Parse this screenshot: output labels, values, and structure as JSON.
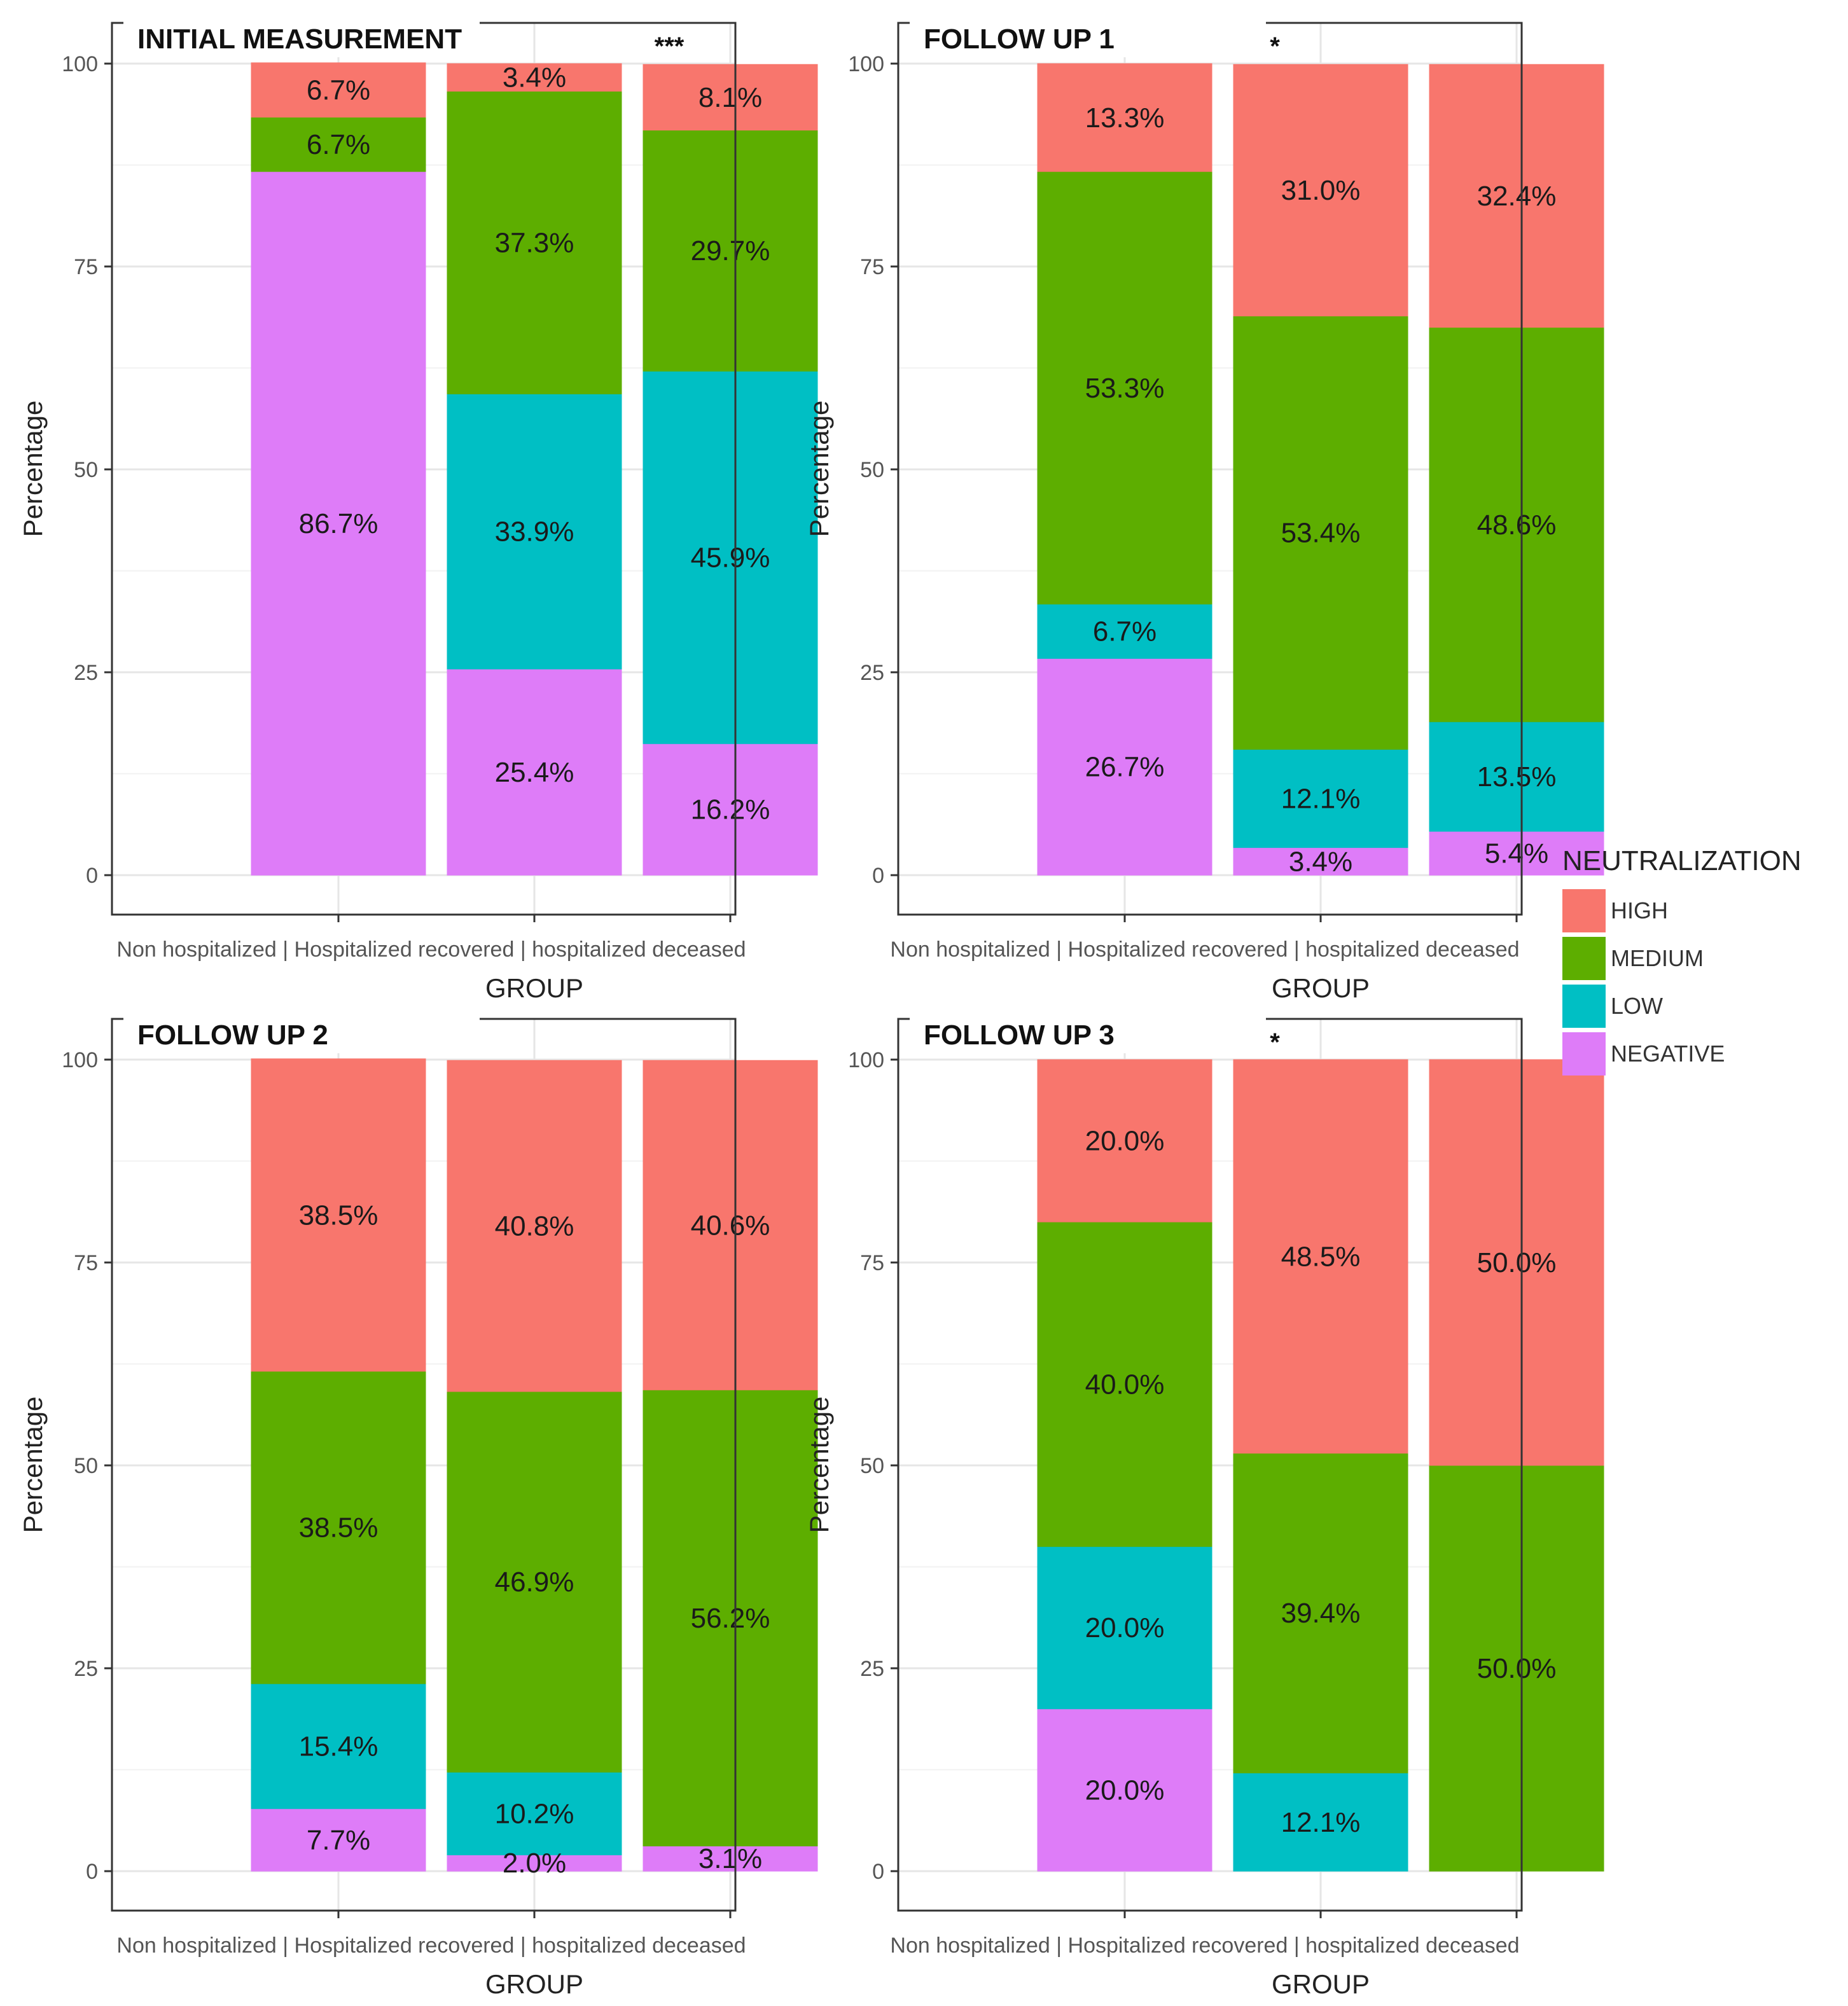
{
  "chart_data": {
    "type": "bar",
    "stacked": true,
    "colors": {
      "HIGH": "#F8766D",
      "MEDIUM": "#5DAE00",
      "LOW": "#00BFC4",
      "NEGATIVE": "#DE7CF8"
    },
    "legend": {
      "title": "NEUTRALIZATION",
      "entries": [
        "HIGH",
        "MEDIUM",
        "LOW",
        "NEGATIVE"
      ],
      "position": "right"
    },
    "panels": [
      {
        "title": "INITIAL MEASUREMENT",
        "significance": "***",
        "xlabel": "GROUP",
        "ylabel": "Percentage",
        "ylim": [
          0,
          100
        ],
        "yticks": [
          "0",
          "25",
          "50",
          "75",
          "100"
        ],
        "categories": [
          "Non hospitalized",
          "Hospitalized recovered",
          "hospitalized deceased"
        ],
        "category_separator": " | ",
        "series": [
          {
            "name": "NEGATIVE",
            "values": [
              86.7,
              25.4,
              16.2
            ],
            "labels": [
              "86.7%",
              "25.4%",
              "16.2%"
            ]
          },
          {
            "name": "LOW",
            "values": [
              0,
              33.9,
              45.9
            ],
            "labels": [
              "",
              "33.9%",
              "45.9%"
            ]
          },
          {
            "name": "MEDIUM",
            "values": [
              6.7,
              37.3,
              29.7
            ],
            "labels": [
              "6.7%",
              "37.3%",
              "29.7%"
            ]
          },
          {
            "name": "HIGH",
            "values": [
              6.7,
              3.4,
              8.1
            ],
            "labels": [
              "6.7%",
              "3.4%",
              "8.1%"
            ]
          }
        ]
      },
      {
        "title": "FOLLOW UP 1",
        "significance": "*",
        "xlabel": "GROUP",
        "ylabel": "Percentage",
        "ylim": [
          0,
          100
        ],
        "yticks": [
          "0",
          "25",
          "50",
          "75",
          "100"
        ],
        "categories": [
          "Non hospitalized",
          "Hospitalized recovered",
          "hospitalized deceased"
        ],
        "category_separator": " | ",
        "series": [
          {
            "name": "NEGATIVE",
            "values": [
              26.7,
              3.4,
              5.4
            ],
            "labels": [
              "26.7%",
              "3.4%",
              "5.4%"
            ]
          },
          {
            "name": "LOW",
            "values": [
              6.7,
              12.1,
              13.5
            ],
            "labels": [
              "6.7%",
              "12.1%",
              "13.5%"
            ]
          },
          {
            "name": "MEDIUM",
            "values": [
              53.3,
              53.4,
              48.6
            ],
            "labels": [
              "53.3%",
              "53.4%",
              "48.6%"
            ]
          },
          {
            "name": "HIGH",
            "values": [
              13.3,
              31.0,
              32.4
            ],
            "labels": [
              "13.3%",
              "31.0%",
              "32.4%"
            ]
          }
        ]
      },
      {
        "title": "FOLLOW UP 2",
        "significance": "",
        "xlabel": "GROUP",
        "ylabel": "Percentage",
        "ylim": [
          0,
          100
        ],
        "yticks": [
          "0",
          "25",
          "50",
          "75",
          "100"
        ],
        "categories": [
          "Non hospitalized",
          "Hospitalized recovered",
          "hospitalized deceased"
        ],
        "category_separator": " | ",
        "series": [
          {
            "name": "NEGATIVE",
            "values": [
              7.7,
              2.0,
              3.1
            ],
            "labels": [
              "7.7%",
              "2.0%",
              "3.1%"
            ]
          },
          {
            "name": "LOW",
            "values": [
              15.4,
              10.2,
              0
            ],
            "labels": [
              "15.4%",
              "10.2%",
              ""
            ]
          },
          {
            "name": "MEDIUM",
            "values": [
              38.5,
              46.9,
              56.2
            ],
            "labels": [
              "38.5%",
              "46.9%",
              "56.2%"
            ]
          },
          {
            "name": "HIGH",
            "values": [
              38.5,
              40.8,
              40.6
            ],
            "labels": [
              "38.5%",
              "40.8%",
              "40.6%"
            ]
          }
        ]
      },
      {
        "title": "FOLLOW UP 3",
        "significance": "*",
        "xlabel": "GROUP",
        "ylabel": "Percentage",
        "ylim": [
          0,
          100
        ],
        "yticks": [
          "0",
          "25",
          "50",
          "75",
          "100"
        ],
        "categories": [
          "Non hospitalized",
          "Hospitalized recovered",
          "hospitalized deceased"
        ],
        "category_separator": " | ",
        "series": [
          {
            "name": "NEGATIVE",
            "values": [
              20.0,
              0,
              0
            ],
            "labels": [
              "20.0%",
              "",
              ""
            ]
          },
          {
            "name": "LOW",
            "values": [
              20.0,
              12.1,
              0
            ],
            "labels": [
              "20.0%",
              "12.1%",
              ""
            ]
          },
          {
            "name": "MEDIUM",
            "values": [
              40.0,
              39.4,
              50.0
            ],
            "labels": [
              "40.0%",
              "39.4%",
              "50.0%"
            ]
          },
          {
            "name": "HIGH",
            "values": [
              20.0,
              48.5,
              50.0
            ],
            "labels": [
              "20.0%",
              "48.5%",
              "50.0%"
            ]
          }
        ]
      }
    ]
  }
}
